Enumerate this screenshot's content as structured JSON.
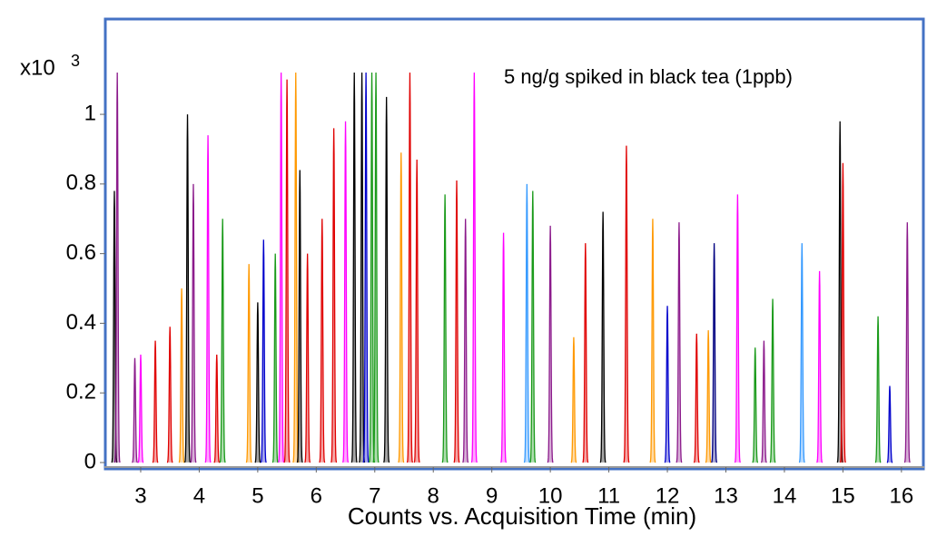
{
  "chart_data": {
    "type": "chromatogram",
    "title": "5 ng/g spiked in black tea (1ppb)",
    "x_label": "Counts vs. Acquisition Time (min)",
    "y_unit": {
      "base": "x10",
      "exponent": "3"
    },
    "xlim": [
      2.38,
      16.39
    ],
    "ylim": [
      -0.013,
      1.12
    ],
    "xticks": [
      3,
      4,
      5,
      6,
      7,
      8,
      9,
      10,
      11,
      12,
      13,
      14,
      15,
      16
    ],
    "yticks": [
      0,
      0.2,
      0.4,
      0.6,
      0.8,
      1
    ],
    "peaks": [
      {
        "time": 2.55,
        "height": 0.78,
        "color": "#000000"
      },
      {
        "time": 2.6,
        "height": 1.12,
        "color": "#8b1a8b"
      },
      {
        "time": 2.9,
        "height": 0.3,
        "color": "#8b1a8b"
      },
      {
        "time": 3.0,
        "height": 0.31,
        "color": "#ff00ff"
      },
      {
        "time": 3.25,
        "height": 0.35,
        "color": "#e00000"
      },
      {
        "time": 3.5,
        "height": 0.39,
        "color": "#e00000"
      },
      {
        "time": 3.7,
        "height": 0.5,
        "color": "#ff9900"
      },
      {
        "time": 3.8,
        "height": 1.0,
        "color": "#000000"
      },
      {
        "time": 3.9,
        "height": 0.8,
        "color": "#8b1a8b"
      },
      {
        "time": 4.15,
        "height": 0.94,
        "color": "#ff00ff"
      },
      {
        "time": 4.3,
        "height": 0.31,
        "color": "#e00000"
      },
      {
        "time": 4.4,
        "height": 0.7,
        "color": "#1a9a1a"
      },
      {
        "time": 4.85,
        "height": 0.57,
        "color": "#ff9900"
      },
      {
        "time": 5.0,
        "height": 0.46,
        "color": "#000000"
      },
      {
        "time": 5.1,
        "height": 0.64,
        "color": "#0000cc"
      },
      {
        "time": 5.3,
        "height": 0.6,
        "color": "#1a9a1a"
      },
      {
        "time": 5.4,
        "height": 1.12,
        "color": "#ff00ff"
      },
      {
        "time": 5.5,
        "height": 1.1,
        "color": "#e00000"
      },
      {
        "time": 5.65,
        "height": 1.12,
        "color": "#ff9900"
      },
      {
        "time": 5.72,
        "height": 0.84,
        "color": "#000000"
      },
      {
        "time": 5.85,
        "height": 0.6,
        "color": "#e00000"
      },
      {
        "time": 6.1,
        "height": 0.7,
        "color": "#e00000"
      },
      {
        "time": 6.3,
        "height": 0.96,
        "color": "#e00000"
      },
      {
        "time": 6.5,
        "height": 0.98,
        "color": "#ff00ff"
      },
      {
        "time": 6.65,
        "height": 1.12,
        "color": "#000000"
      },
      {
        "time": 6.78,
        "height": 1.12,
        "color": "#000000"
      },
      {
        "time": 6.85,
        "height": 1.12,
        "color": "#0000cc"
      },
      {
        "time": 6.95,
        "height": 1.12,
        "color": "#1a9a1a"
      },
      {
        "time": 7.02,
        "height": 1.12,
        "color": "#1a9a1a"
      },
      {
        "time": 7.2,
        "height": 1.05,
        "color": "#000000"
      },
      {
        "time": 7.45,
        "height": 0.89,
        "color": "#ff9900"
      },
      {
        "time": 7.6,
        "height": 1.12,
        "color": "#e00000"
      },
      {
        "time": 7.72,
        "height": 0.87,
        "color": "#e00000"
      },
      {
        "time": 8.2,
        "height": 0.77,
        "color": "#1a9a1a"
      },
      {
        "time": 8.4,
        "height": 0.81,
        "color": "#e00000"
      },
      {
        "time": 8.55,
        "height": 0.7,
        "color": "#8b1a8b"
      },
      {
        "time": 8.7,
        "height": 1.12,
        "color": "#ff00ff"
      },
      {
        "time": 9.2,
        "height": 0.66,
        "color": "#ff00ff"
      },
      {
        "time": 9.6,
        "height": 0.8,
        "color": "#3399ff"
      },
      {
        "time": 9.7,
        "height": 0.78,
        "color": "#1a9a1a"
      },
      {
        "time": 10.0,
        "height": 0.68,
        "color": "#8b1a8b"
      },
      {
        "time": 10.4,
        "height": 0.36,
        "color": "#ff9900"
      },
      {
        "time": 10.6,
        "height": 0.63,
        "color": "#e00000"
      },
      {
        "time": 10.9,
        "height": 0.72,
        "color": "#000000"
      },
      {
        "time": 11.3,
        "height": 0.91,
        "color": "#e00000"
      },
      {
        "time": 11.75,
        "height": 0.7,
        "color": "#ff9900"
      },
      {
        "time": 12.0,
        "height": 0.45,
        "color": "#0000cc"
      },
      {
        "time": 12.2,
        "height": 0.69,
        "color": "#8b1a8b"
      },
      {
        "time": 12.5,
        "height": 0.37,
        "color": "#e00000"
      },
      {
        "time": 12.7,
        "height": 0.38,
        "color": "#ff9900"
      },
      {
        "time": 12.8,
        "height": 0.63,
        "color": "#000080"
      },
      {
        "time": 13.2,
        "height": 0.77,
        "color": "#ff00ff"
      },
      {
        "time": 13.5,
        "height": 0.33,
        "color": "#1a9a1a"
      },
      {
        "time": 13.65,
        "height": 0.35,
        "color": "#8b1a8b"
      },
      {
        "time": 13.8,
        "height": 0.47,
        "color": "#1a9a1a"
      },
      {
        "time": 14.3,
        "height": 0.63,
        "color": "#3399ff"
      },
      {
        "time": 14.6,
        "height": 0.55,
        "color": "#ff00ff"
      },
      {
        "time": 14.95,
        "height": 0.98,
        "color": "#000000"
      },
      {
        "time": 15.0,
        "height": 0.86,
        "color": "#e00000"
      },
      {
        "time": 15.6,
        "height": 0.42,
        "color": "#1a9a1a"
      },
      {
        "time": 15.8,
        "height": 0.22,
        "color": "#0000cc"
      },
      {
        "time": 16.1,
        "height": 0.69,
        "color": "#8b1a8b"
      }
    ]
  }
}
